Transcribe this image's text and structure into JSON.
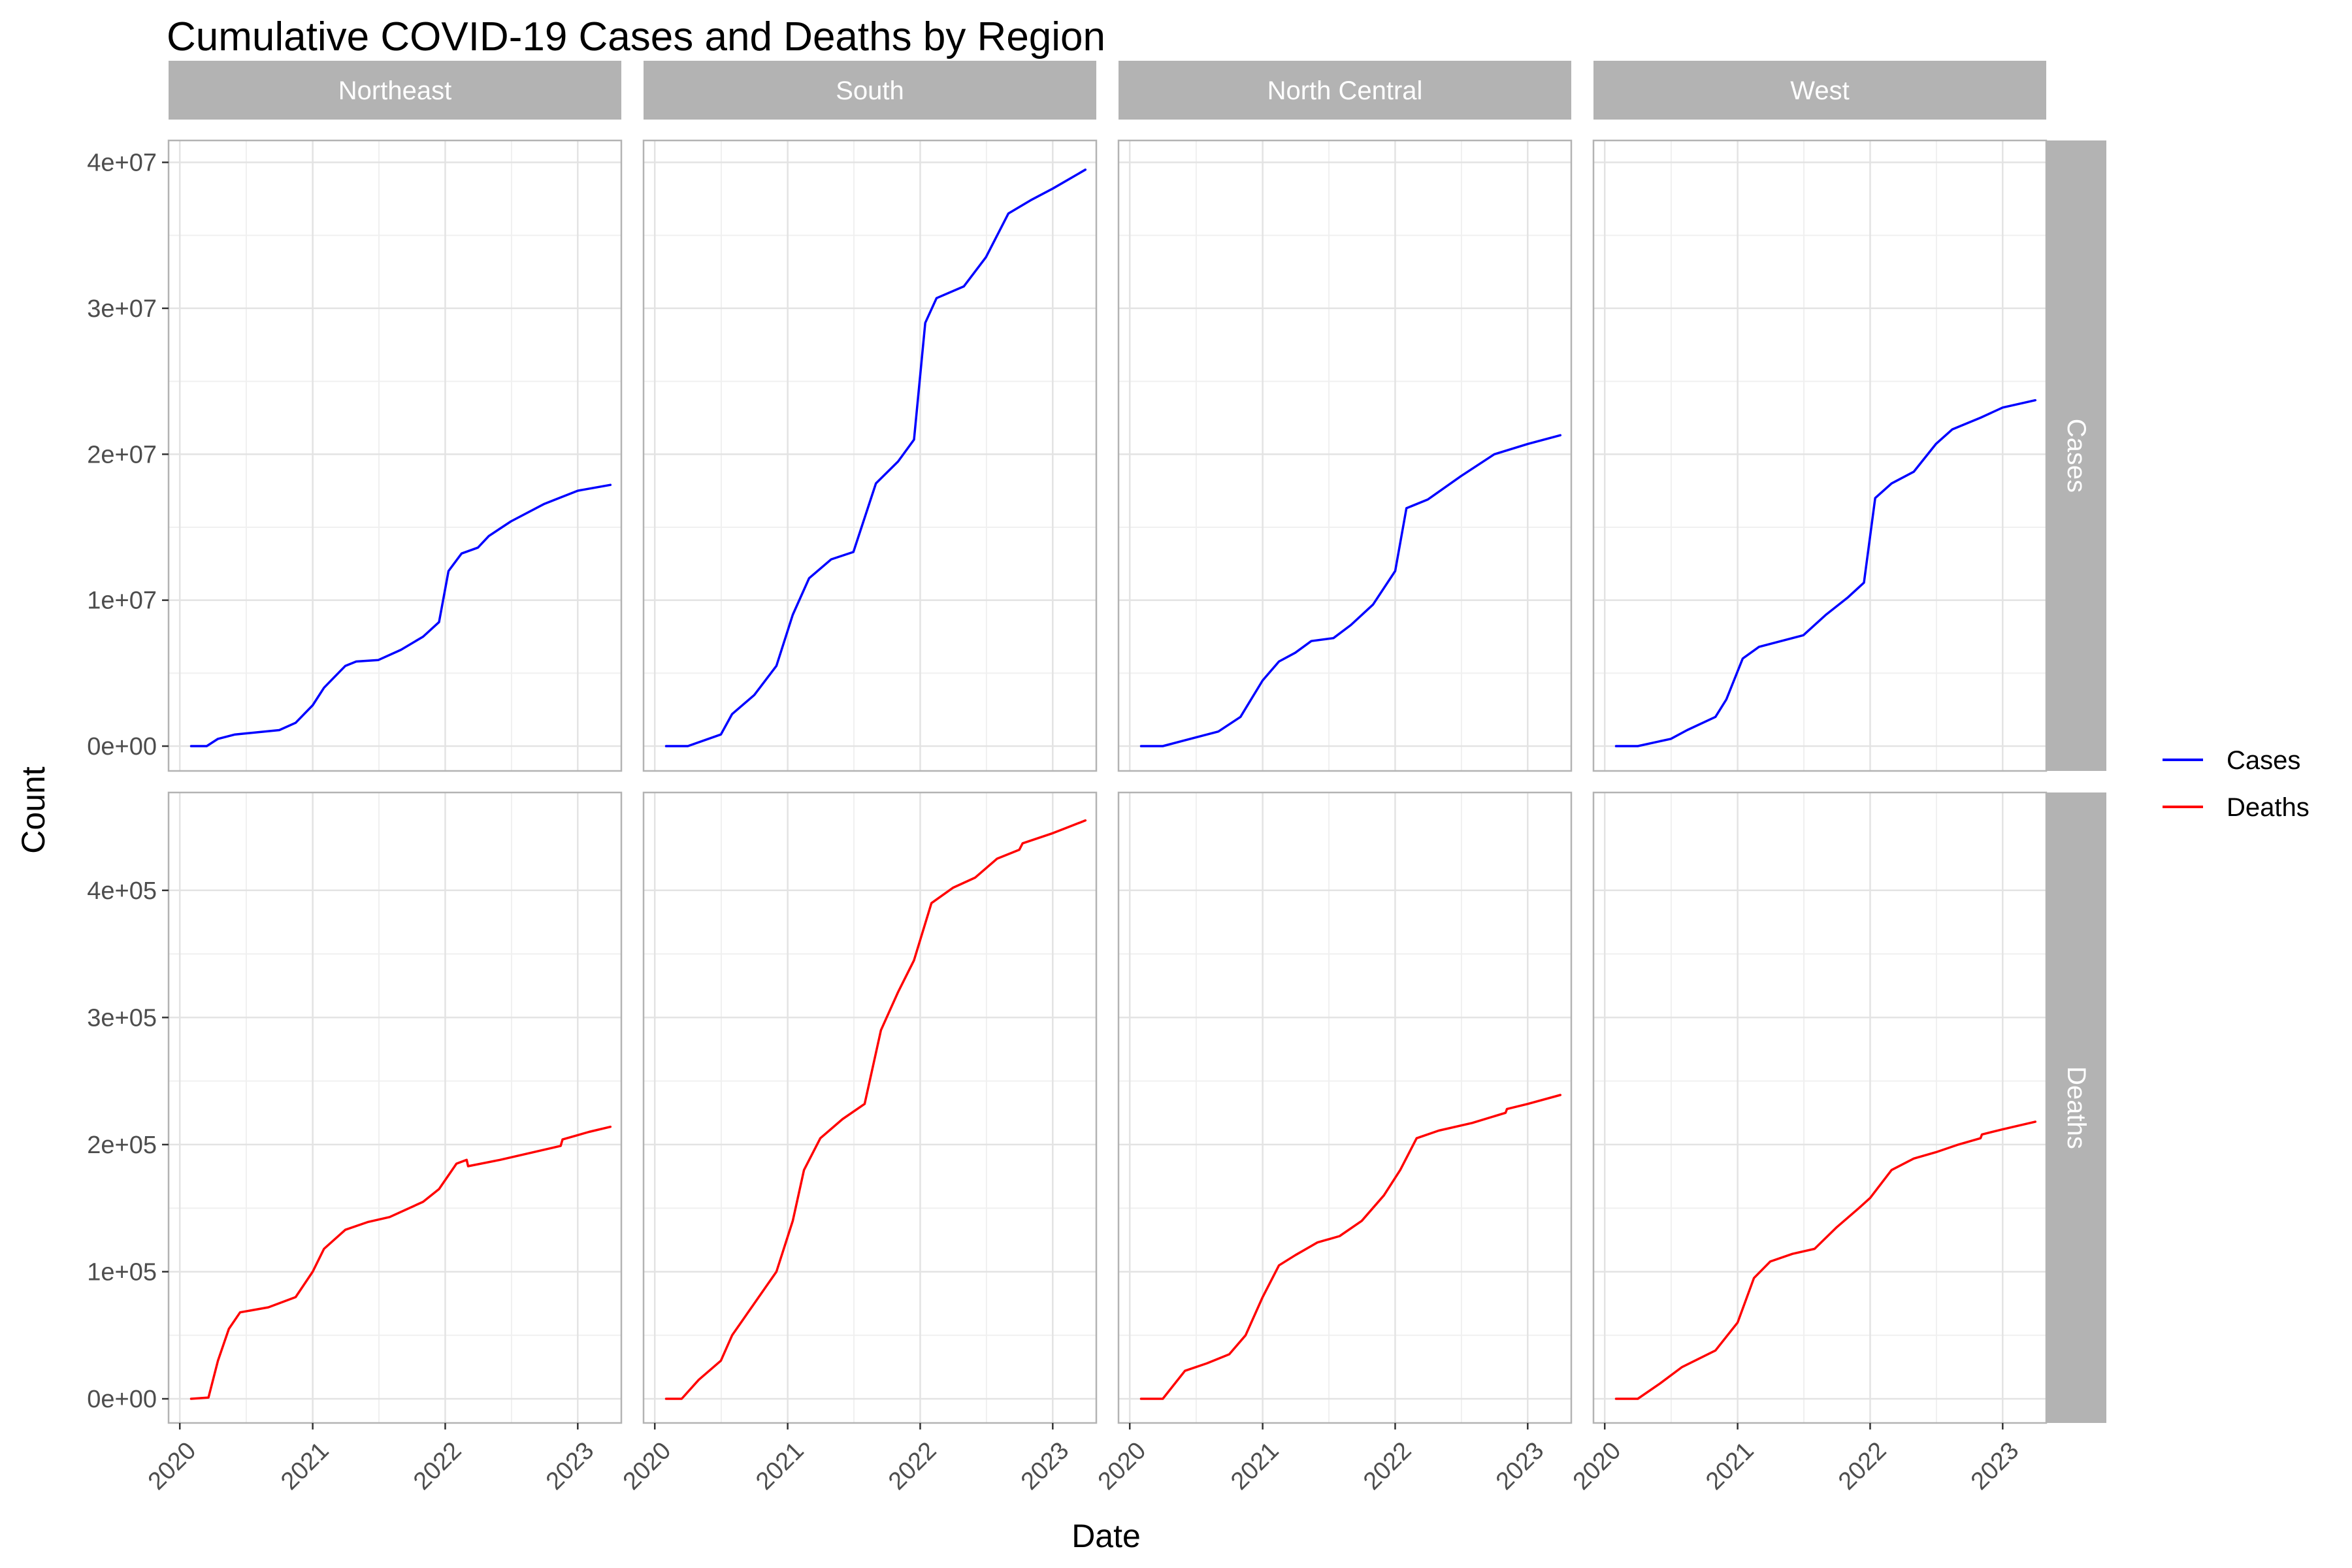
{
  "chart_data": {
    "type": "line",
    "title": "Cumulative COVID-19 Cases and Deaths by Region",
    "xlabel": "Date",
    "ylabel": "Count",
    "x_ticks": [
      "2020",
      "2021",
      "2022",
      "2023"
    ],
    "x_tick_dates": [
      "2020-01-01",
      "2021-01-01",
      "2022-01-01",
      "2023-01-01"
    ],
    "xlim": [
      "2019-12-01",
      "2023-05-01"
    ],
    "columns": [
      "Northeast",
      "South",
      "North Central",
      "West"
    ],
    "rows": [
      {
        "name": "Cases",
        "ylim": [
          -1700000,
          41500000
        ],
        "y_ticks": [
          0,
          10000000,
          20000000,
          30000000,
          40000000
        ],
        "y_tick_labels": [
          "0e+00",
          "1e+07",
          "2e+07",
          "3e+07",
          "4e+07"
        ]
      },
      {
        "name": "Deaths",
        "ylim": [
          -19000,
          477000
        ],
        "y_ticks": [
          0,
          100000,
          200000,
          300000,
          400000
        ],
        "y_tick_labels": [
          "0e+00",
          "1e+05",
          "2e+05",
          "3e+05",
          "4e+05"
        ]
      }
    ],
    "series": [
      {
        "name": "Cases",
        "color": "#0000ff",
        "panels": {
          "Northeast": [
            [
              "2020-02-01",
              0
            ],
            [
              "2020-03-15",
              0
            ],
            [
              "2020-04-15",
              500000
            ],
            [
              "2020-06-01",
              800000
            ],
            [
              "2020-10-01",
              1100000
            ],
            [
              "2020-11-15",
              1600000
            ],
            [
              "2021-01-01",
              2800000
            ],
            [
              "2021-02-01",
              4000000
            ],
            [
              "2021-04-01",
              5500000
            ],
            [
              "2021-05-01",
              5800000
            ],
            [
              "2021-07-01",
              5900000
            ],
            [
              "2021-09-01",
              6600000
            ],
            [
              "2021-11-01",
              7500000
            ],
            [
              "2021-12-15",
              8500000
            ],
            [
              "2022-01-10",
              12000000
            ],
            [
              "2022-02-15",
              13200000
            ],
            [
              "2022-04-01",
              13600000
            ],
            [
              "2022-05-01",
              14400000
            ],
            [
              "2022-07-01",
              15400000
            ],
            [
              "2022-10-01",
              16600000
            ],
            [
              "2023-01-01",
              17500000
            ],
            [
              "2023-04-01",
              17900000
            ]
          ],
          "South": [
            [
              "2020-02-01",
              0
            ],
            [
              "2020-04-01",
              0
            ],
            [
              "2020-07-01",
              800000
            ],
            [
              "2020-08-01",
              2200000
            ],
            [
              "2020-10-01",
              3500000
            ],
            [
              "2020-12-01",
              5500000
            ],
            [
              "2021-01-15",
              9000000
            ],
            [
              "2021-03-01",
              11500000
            ],
            [
              "2021-05-01",
              12800000
            ],
            [
              "2021-07-01",
              13300000
            ],
            [
              "2021-09-01",
              18000000
            ],
            [
              "2021-11-01",
              19500000
            ],
            [
              "2021-12-15",
              21000000
            ],
            [
              "2022-01-15",
              29000000
            ],
            [
              "2022-02-15",
              30700000
            ],
            [
              "2022-05-01",
              31500000
            ],
            [
              "2022-07-01",
              33500000
            ],
            [
              "2022-09-01",
              36500000
            ],
            [
              "2022-11-01",
              37400000
            ],
            [
              "2023-01-01",
              38200000
            ],
            [
              "2023-04-01",
              39500000
            ]
          ],
          "North Central": [
            [
              "2020-02-01",
              0
            ],
            [
              "2020-04-01",
              0
            ],
            [
              "2020-06-01",
              400000
            ],
            [
              "2020-09-01",
              1000000
            ],
            [
              "2020-11-01",
              2000000
            ],
            [
              "2021-01-01",
              4500000
            ],
            [
              "2021-02-15",
              5800000
            ],
            [
              "2021-04-01",
              6400000
            ],
            [
              "2021-05-15",
              7200000
            ],
            [
              "2021-07-15",
              7400000
            ],
            [
              "2021-09-01",
              8300000
            ],
            [
              "2021-11-01",
              9700000
            ],
            [
              "2022-01-01",
              12000000
            ],
            [
              "2022-02-01",
              16300000
            ],
            [
              "2022-04-01",
              16900000
            ],
            [
              "2022-07-01",
              18500000
            ],
            [
              "2022-10-01",
              20000000
            ],
            [
              "2023-01-01",
              20700000
            ],
            [
              "2023-04-01",
              21300000
            ]
          ],
          "West": [
            [
              "2020-02-01",
              0
            ],
            [
              "2020-04-01",
              0
            ],
            [
              "2020-07-01",
              500000
            ],
            [
              "2020-08-15",
              1100000
            ],
            [
              "2020-11-01",
              2000000
            ],
            [
              "2020-12-01",
              3200000
            ],
            [
              "2021-01-15",
              6000000
            ],
            [
              "2021-03-01",
              6800000
            ],
            [
              "2021-05-01",
              7200000
            ],
            [
              "2021-07-01",
              7600000
            ],
            [
              "2021-09-01",
              9000000
            ],
            [
              "2021-11-01",
              10200000
            ],
            [
              "2021-12-15",
              11200000
            ],
            [
              "2022-01-15",
              17000000
            ],
            [
              "2022-03-01",
              18000000
            ],
            [
              "2022-05-01",
              18800000
            ],
            [
              "2022-07-01",
              20700000
            ],
            [
              "2022-08-15",
              21700000
            ],
            [
              "2022-11-01",
              22500000
            ],
            [
              "2023-01-01",
              23200000
            ],
            [
              "2023-04-01",
              23700000
            ]
          ]
        }
      },
      {
        "name": "Deaths",
        "color": "#ff0000",
        "panels": {
          "Northeast": [
            [
              "2020-02-01",
              0
            ],
            [
              "2020-03-20",
              1000
            ],
            [
              "2020-04-15",
              30000
            ],
            [
              "2020-05-15",
              55000
            ],
            [
              "2020-06-15",
              68000
            ],
            [
              "2020-09-01",
              72000
            ],
            [
              "2020-11-15",
              80000
            ],
            [
              "2021-01-01",
              100000
            ],
            [
              "2021-02-01",
              118000
            ],
            [
              "2021-04-01",
              133000
            ],
            [
              "2021-06-01",
              139000
            ],
            [
              "2021-08-01",
              143000
            ],
            [
              "2021-11-01",
              155000
            ],
            [
              "2021-12-15",
              165000
            ],
            [
              "2022-02-01",
              185000
            ],
            [
              "2022-03-01",
              188000
            ],
            [
              "2022-03-05",
              183000
            ],
            [
              "2022-06-01",
              188000
            ],
            [
              "2022-09-01",
              194000
            ],
            [
              "2022-11-15",
              199000
            ],
            [
              "2022-11-20",
              204000
            ],
            [
              "2023-02-01",
              210000
            ],
            [
              "2023-04-01",
              214000
            ]
          ],
          "South": [
            [
              "2020-02-01",
              0
            ],
            [
              "2020-03-15",
              0
            ],
            [
              "2020-05-01",
              15000
            ],
            [
              "2020-07-01",
              30000
            ],
            [
              "2020-08-01",
              50000
            ],
            [
              "2020-10-01",
              75000
            ],
            [
              "2020-12-01",
              100000
            ],
            [
              "2021-01-15",
              140000
            ],
            [
              "2021-02-15",
              180000
            ],
            [
              "2021-04-01",
              205000
            ],
            [
              "2021-06-01",
              220000
            ],
            [
              "2021-08-01",
              232000
            ],
            [
              "2021-09-15",
              290000
            ],
            [
              "2021-11-01",
              320000
            ],
            [
              "2021-12-15",
              345000
            ],
            [
              "2022-02-01",
              390000
            ],
            [
              "2022-04-01",
              402000
            ],
            [
              "2022-06-01",
              410000
            ],
            [
              "2022-08-01",
              425000
            ],
            [
              "2022-10-01",
              432000
            ],
            [
              "2022-10-10",
              437000
            ],
            [
              "2023-01-01",
              445000
            ],
            [
              "2023-04-01",
              455000
            ]
          ],
          "North Central": [
            [
              "2020-02-01",
              0
            ],
            [
              "2020-04-01",
              0
            ],
            [
              "2020-06-01",
              22000
            ],
            [
              "2020-08-01",
              28000
            ],
            [
              "2020-10-01",
              35000
            ],
            [
              "2020-11-15",
              50000
            ],
            [
              "2021-01-01",
              80000
            ],
            [
              "2021-02-15",
              105000
            ],
            [
              "2021-04-01",
              113000
            ],
            [
              "2021-06-01",
              123000
            ],
            [
              "2021-08-01",
              128000
            ],
            [
              "2021-10-01",
              140000
            ],
            [
              "2021-12-01",
              160000
            ],
            [
              "2022-01-15",
              180000
            ],
            [
              "2022-03-01",
              205000
            ],
            [
              "2022-05-01",
              211000
            ],
            [
              "2022-08-01",
              217000
            ],
            [
              "2022-11-01",
              225000
            ],
            [
              "2022-11-05",
              228000
            ],
            [
              "2023-01-01",
              232000
            ],
            [
              "2023-04-01",
              239000
            ]
          ],
          "West": [
            [
              "2020-02-01",
              0
            ],
            [
              "2020-04-01",
              0
            ],
            [
              "2020-06-01",
              12000
            ],
            [
              "2020-08-01",
              25000
            ],
            [
              "2020-11-01",
              38000
            ],
            [
              "2021-01-01",
              60000
            ],
            [
              "2021-02-15",
              95000
            ],
            [
              "2021-04-01",
              108000
            ],
            [
              "2021-06-01",
              114000
            ],
            [
              "2021-08-01",
              118000
            ],
            [
              "2021-10-01",
              135000
            ],
            [
              "2021-12-01",
              150000
            ],
            [
              "2022-01-01",
              158000
            ],
            [
              "2022-03-01",
              180000
            ],
            [
              "2022-05-01",
              189000
            ],
            [
              "2022-07-01",
              194000
            ],
            [
              "2022-09-01",
              200000
            ],
            [
              "2022-11-01",
              205000
            ],
            [
              "2022-11-05",
              208000
            ],
            [
              "2023-01-01",
              212000
            ],
            [
              "2023-04-01",
              218000
            ]
          ]
        }
      }
    ],
    "legend": {
      "position": "right",
      "items": [
        {
          "label": "Cases",
          "color": "#0000ff"
        },
        {
          "label": "Deaths",
          "color": "#ff0000"
        }
      ]
    },
    "grid": true
  }
}
